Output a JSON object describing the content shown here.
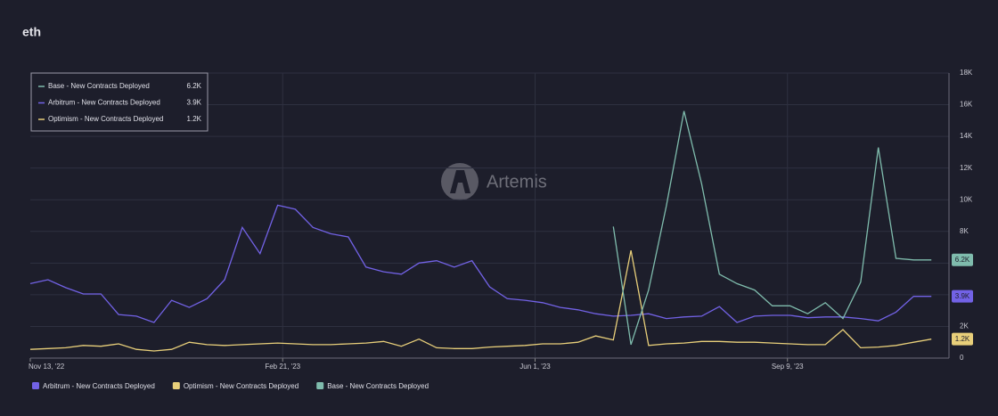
{
  "chart_data": {
    "type": "line",
    "title": "eth",
    "watermark": "Artemis",
    "x": [
      "2022-11-13",
      "2022-11-20",
      "2022-11-27",
      "2022-12-04",
      "2022-12-11",
      "2022-12-18",
      "2022-12-25",
      "2023-01-01",
      "2023-01-08",
      "2023-01-15",
      "2023-01-22",
      "2023-01-29",
      "2023-02-05",
      "2023-02-12",
      "2023-02-19",
      "2023-02-26",
      "2023-03-05",
      "2023-03-12",
      "2023-03-19",
      "2023-03-26",
      "2023-04-02",
      "2023-04-09",
      "2023-04-16",
      "2023-04-23",
      "2023-04-30",
      "2023-05-07",
      "2023-05-14",
      "2023-05-21",
      "2023-05-28",
      "2023-06-04",
      "2023-06-11",
      "2023-06-18",
      "2023-06-25",
      "2023-07-02",
      "2023-07-09",
      "2023-07-16",
      "2023-07-23",
      "2023-07-30",
      "2023-08-06",
      "2023-08-13",
      "2023-08-20",
      "2023-08-27",
      "2023-09-03",
      "2023-09-10",
      "2023-09-17",
      "2023-09-24",
      "2023-10-01",
      "2023-10-08",
      "2023-10-15",
      "2023-10-22",
      "2023-10-29",
      "2023-11-05"
    ],
    "xlim": [
      "2022-11-13",
      "2023-11-12"
    ],
    "xticks": [
      {
        "value": "2022-11-13",
        "label": "Nov 13, '22"
      },
      {
        "value": "2023-02-21",
        "label": "Feb 21, '23"
      },
      {
        "value": "2023-06-01",
        "label": "Jun 1, '23"
      },
      {
        "value": "2023-09-09",
        "label": "Sep 9, '23"
      }
    ],
    "ylim": [
      0,
      18000
    ],
    "yticks": [
      0,
      {
        "value": 2000,
        "label": "2K"
      },
      {
        "value": 4000,
        "label": "4K"
      },
      {
        "value": 6000,
        "label": "6K"
      },
      {
        "value": 8000,
        "label": "8K"
      },
      {
        "value": 10000,
        "label": "10K"
      },
      {
        "value": 12000,
        "label": "12K"
      },
      {
        "value": 14000,
        "label": "14K"
      },
      {
        "value": 16000,
        "label": "16K"
      },
      {
        "value": 18000,
        "label": "18K"
      }
    ],
    "grid": true,
    "legend": "upper left",
    "series": [
      {
        "name": "Arbitrum - New Contracts Deployed",
        "color": "#7262e6",
        "last_label": "3.9K",
        "values": [
          4700,
          4950,
          4450,
          4050,
          4050,
          2750,
          2650,
          2250,
          3650,
          3200,
          3750,
          4950,
          8250,
          6600,
          9650,
          9400,
          8250,
          7850,
          7650,
          5750,
          5450,
          5300,
          6000,
          6150,
          5750,
          6150,
          4500,
          3750,
          3650,
          3500,
          3200,
          3050,
          2800,
          2650,
          2700,
          2800,
          2500,
          2600,
          2650,
          3250,
          2250,
          2650,
          2700,
          2700,
          2550,
          2600,
          2600,
          2500,
          2350,
          2900,
          3900,
          3900
        ]
      },
      {
        "name": "Optimism - New Contracts Deployed",
        "color": "#e8cf7a",
        "last_label": "1.2K",
        "values": [
          550,
          600,
          650,
          800,
          750,
          900,
          550,
          450,
          550,
          1000,
          850,
          800,
          850,
          900,
          950,
          900,
          850,
          850,
          900,
          950,
          1050,
          750,
          1200,
          650,
          600,
          600,
          700,
          750,
          800,
          900,
          900,
          1000,
          1400,
          1150,
          6800,
          800,
          900,
          950,
          1050,
          1050,
          1000,
          1000,
          950,
          900,
          850,
          850,
          1800,
          650,
          700,
          800,
          1000,
          1200
        ]
      },
      {
        "name": "Base - New Contracts Deployed",
        "color": "#7fbcad",
        "last_label": "6.2K",
        "values": [
          null,
          null,
          null,
          null,
          null,
          null,
          null,
          null,
          null,
          null,
          null,
          null,
          null,
          null,
          null,
          null,
          null,
          null,
          null,
          null,
          null,
          null,
          null,
          null,
          null,
          null,
          null,
          null,
          null,
          null,
          null,
          null,
          null,
          8300,
          850,
          4300,
          9600,
          15600,
          11000,
          5300,
          4700,
          4300,
          3300,
          3300,
          2800,
          3500,
          2500,
          4800,
          13300,
          6300,
          6200,
          6200
        ]
      }
    ]
  }
}
